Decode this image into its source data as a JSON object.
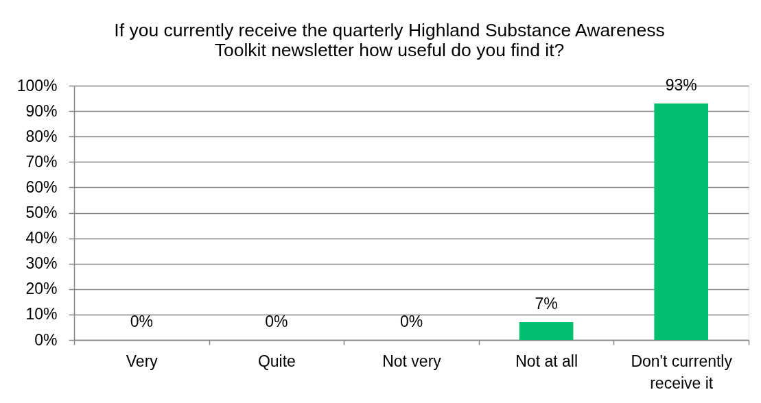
{
  "chart_data": {
    "type": "bar",
    "title": "If you currently receive the quarterly Highland Substance Awareness Toolkit newsletter how useful do you find it?",
    "categories": [
      "Very",
      "Quite",
      "Not very",
      "Not at all",
      "Don't currently receive it"
    ],
    "values": [
      0,
      0,
      0,
      7,
      93
    ],
    "value_labels": [
      "0%",
      "0%",
      "0%",
      "7%",
      "93%"
    ],
    "color": "#00bf6f",
    "ylim": [
      0,
      100
    ],
    "yticks": [
      {
        "value": 0,
        "label": "0%"
      },
      {
        "value": 10,
        "label": "10%"
      },
      {
        "value": 20,
        "label": "20%"
      },
      {
        "value": 30,
        "label": "30%"
      },
      {
        "value": 40,
        "label": "40%"
      },
      {
        "value": 50,
        "label": "50%"
      },
      {
        "value": 60,
        "label": "60%"
      },
      {
        "value": 70,
        "label": "70%"
      },
      {
        "value": 80,
        "label": "80%"
      },
      {
        "value": 90,
        "label": "90%"
      },
      {
        "value": 100,
        "label": "100%"
      }
    ],
    "grid": "y"
  }
}
